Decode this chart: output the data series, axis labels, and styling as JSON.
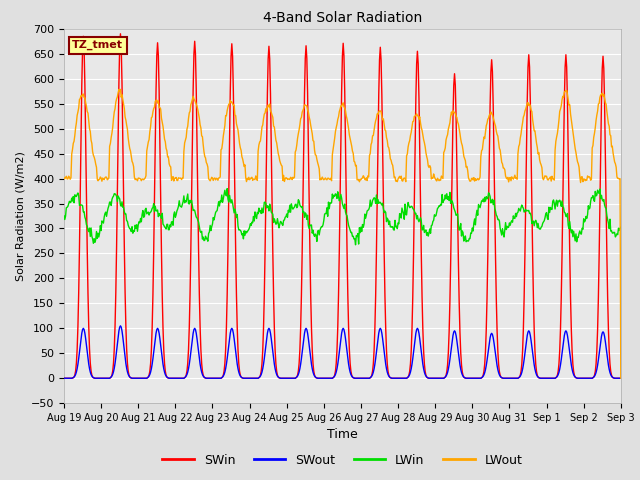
{
  "title": "4-Band Solar Radiation",
  "xlabel": "Time",
  "ylabel": "Solar Radiation (W/m2)",
  "ylim": [
    -50,
    700
  ],
  "background_color": "#e0e0e0",
  "plot_bg_color": "#e8e8e8",
  "grid_color": "#ffffff",
  "colors": {
    "SWin": "#ff0000",
    "SWout": "#0000ff",
    "LWin": "#00dd00",
    "LWout": "#ffa500"
  },
  "tz_label": "TZ_tmet",
  "tz_bg": "#ffff99",
  "tz_border": "#880000",
  "legend_labels": [
    "SWin",
    "SWout",
    "LWin",
    "LWout"
  ],
  "tick_labels": [
    "Aug 19",
    "Aug 20",
    "Aug 21",
    "Aug 22",
    "Aug 23",
    "Aug 24",
    "Aug 25",
    "Aug 26",
    "Aug 27",
    "Aug 28",
    "Aug 29",
    "Aug 30",
    "Aug 31",
    "Sep 1",
    "Sep 2",
    "Sep 3"
  ],
  "num_days": 15,
  "swin_peaks": [
    685,
    690,
    672,
    675,
    670,
    665,
    666,
    671,
    663,
    655,
    610,
    638,
    648,
    648,
    645
  ],
  "swout_peaks": [
    100,
    105,
    100,
    100,
    100,
    100,
    100,
    100,
    100,
    100,
    95,
    90,
    95,
    95,
    93
  ],
  "lwin_base": 320,
  "lwin_amplitude": 30,
  "lwout_night": 400,
  "lwout_day_peaks": [
    570,
    575,
    555,
    560,
    555,
    548,
    545,
    548,
    535,
    530,
    535,
    530,
    550,
    575,
    570
  ]
}
